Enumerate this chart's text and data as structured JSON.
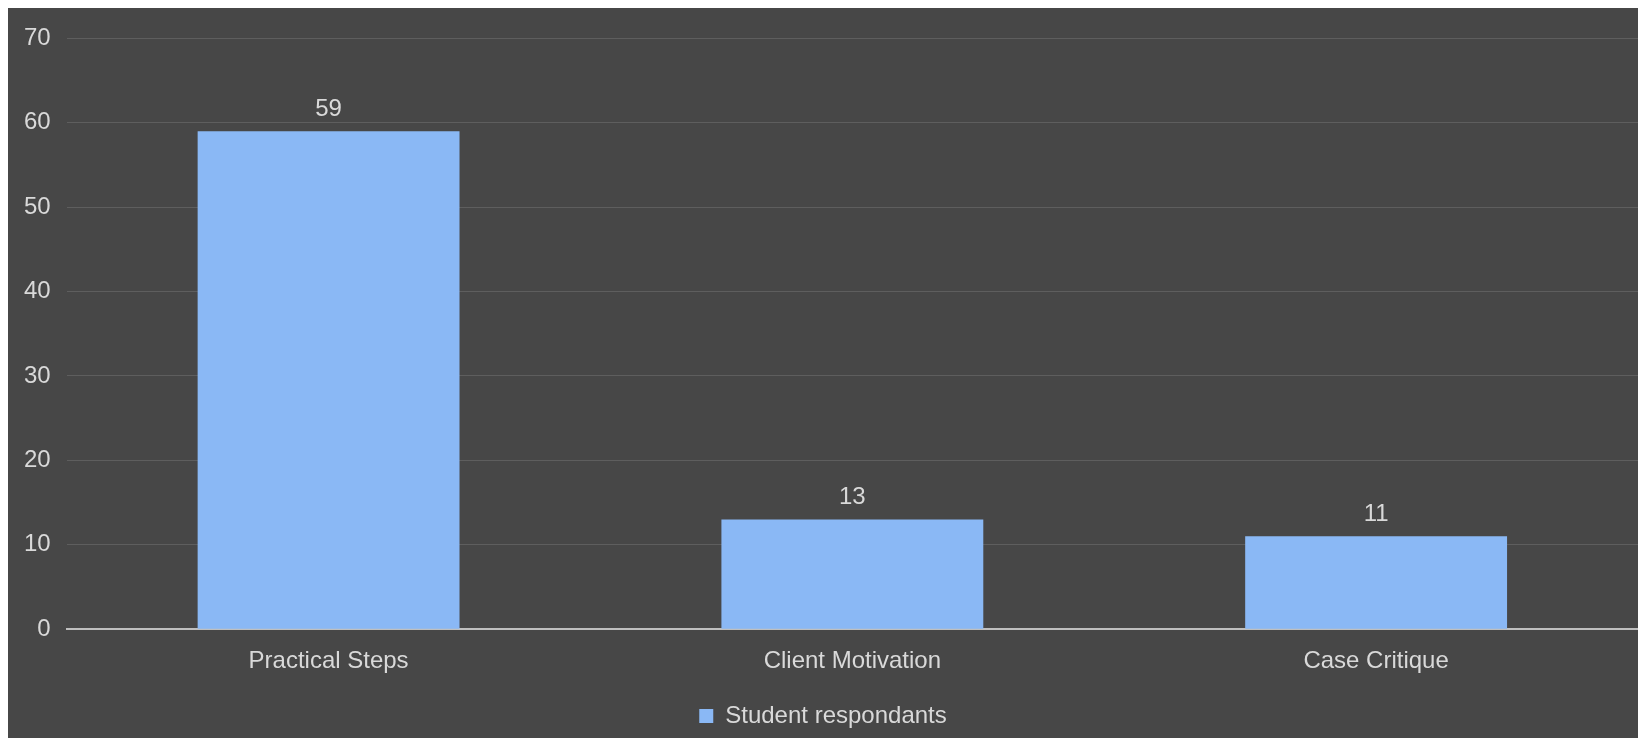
{
  "chart_data": {
    "type": "bar",
    "categories": [
      "Practical Steps",
      "Client Motivation",
      "Case Critique"
    ],
    "series": [
      {
        "name": "Student respondants",
        "color": "#8ab8f5",
        "values": [
          59,
          13,
          11
        ]
      }
    ],
    "ylim": [
      0,
      70
    ],
    "yticks": [
      0,
      10,
      20,
      30,
      40,
      50,
      60,
      70
    ],
    "grid": "y",
    "legend": "bottom",
    "data_labels": true
  }
}
